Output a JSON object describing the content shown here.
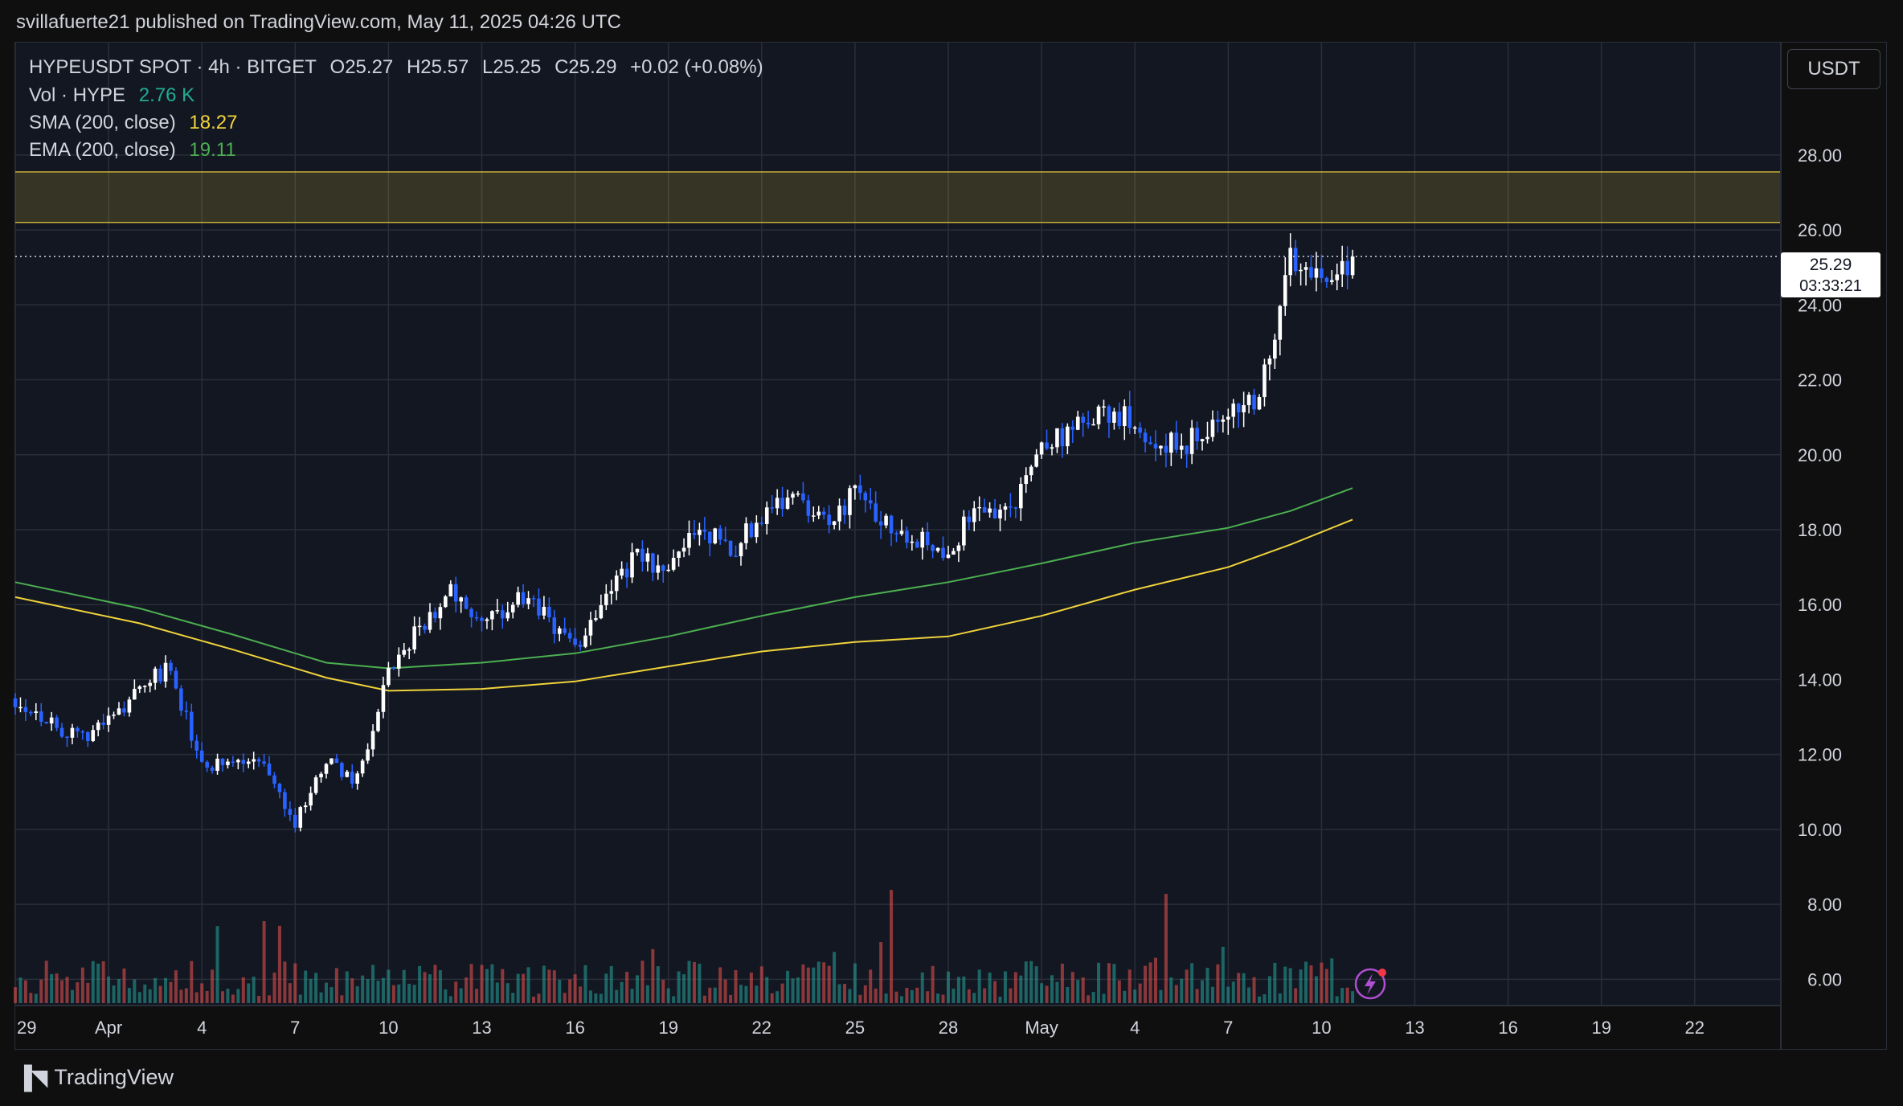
{
  "header": {
    "publisher": "svillafuerte21 published on TradingView.com, May 11, 2025 04:26 UTC"
  },
  "legend": {
    "symbol": "HYPEUSDT SPOT · 4h · BITGET",
    "open": "O25.27",
    "high": "H25.57",
    "low": "L25.25",
    "close": "C25.29",
    "change": "+0.02 (+0.08%)",
    "vol_label": "Vol · HYPE",
    "vol_value": "2.76 K",
    "sma_label": "SMA (200, close)",
    "sma_value": "18.27",
    "ema_label": "EMA (200, close)",
    "ema_value": "19.11"
  },
  "toolbar": {
    "currency": "USDT"
  },
  "price_tag": {
    "price": "25.29",
    "countdown": "03:33:21"
  },
  "footer": {
    "brand": "TradingView"
  },
  "colors": {
    "background": "#131722",
    "up": "#ffffff",
    "down": "#2962ff",
    "sma": "#f0d33b",
    "ema": "#4caf50",
    "vol_up": "#26a69a",
    "vol_down": "#ef5350",
    "zone": "#f0d33b"
  },
  "chart_data": {
    "type": "candlestick",
    "ylim": [
      5.3,
      31.0
    ],
    "y_ticks": [
      "6.00",
      "8.00",
      "10.00",
      "12.00",
      "14.00",
      "16.00",
      "18.00",
      "20.00",
      "22.00",
      "24.00",
      "26.00",
      "28.00"
    ],
    "x_ticks": [
      "29",
      "Apr",
      "4",
      "7",
      "10",
      "13",
      "16",
      "19",
      "22",
      "25",
      "28",
      "May",
      "4",
      "7",
      "10",
      "13",
      "16",
      "19",
      "22"
    ],
    "resistance_zone": [
      26.2,
      27.55
    ],
    "current_price": 25.29,
    "close_path": [
      {
        "date": "2025-03-29",
        "close": 13.5
      },
      {
        "date": "2025-03-31",
        "close": 12.4
      },
      {
        "date": "2025-04-01",
        "close": 12.9
      },
      {
        "date": "2025-04-02",
        "close": 13.8
      },
      {
        "date": "2025-04-03",
        "close": 14.3
      },
      {
        "date": "2025-04-04",
        "close": 11.6
      },
      {
        "date": "2025-04-05",
        "close": 11.8
      },
      {
        "date": "2025-04-06",
        "close": 11.7
      },
      {
        "date": "2025-04-07",
        "close": 10.2
      },
      {
        "date": "2025-04-08",
        "close": 11.8
      },
      {
        "date": "2025-04-09",
        "close": 11.3
      },
      {
        "date": "2025-04-10",
        "close": 14.1
      },
      {
        "date": "2025-04-11",
        "close": 15.4
      },
      {
        "date": "2025-04-12",
        "close": 16.4
      },
      {
        "date": "2025-04-13",
        "close": 15.3
      },
      {
        "date": "2025-04-14",
        "close": 16.1
      },
      {
        "date": "2025-04-15",
        "close": 15.8
      },
      {
        "date": "2025-04-16",
        "close": 14.8
      },
      {
        "date": "2025-04-17",
        "close": 16.4
      },
      {
        "date": "2025-04-18",
        "close": 17.3
      },
      {
        "date": "2025-04-19",
        "close": 16.8
      },
      {
        "date": "2025-04-20",
        "close": 18.2
      },
      {
        "date": "2025-04-21",
        "close": 17.4
      },
      {
        "date": "2025-04-22",
        "close": 18.4
      },
      {
        "date": "2025-04-23",
        "close": 19.1
      },
      {
        "date": "2025-04-24",
        "close": 18.2
      },
      {
        "date": "2025-04-25",
        "close": 18.9
      },
      {
        "date": "2025-04-26",
        "close": 18.3
      },
      {
        "date": "2025-04-27",
        "close": 17.8
      },
      {
        "date": "2025-04-28",
        "close": 17.5
      },
      {
        "date": "2025-04-29",
        "close": 18.6
      },
      {
        "date": "2025-04-30",
        "close": 18.5
      },
      {
        "date": "2025-05-01",
        "close": 20.3
      },
      {
        "date": "2025-05-02",
        "close": 20.6
      },
      {
        "date": "2025-05-03",
        "close": 21.1
      },
      {
        "date": "2025-05-04",
        "close": 20.9
      },
      {
        "date": "2025-05-05",
        "close": 20.2
      },
      {
        "date": "2025-05-06",
        "close": 20.4
      },
      {
        "date": "2025-05-07",
        "close": 21.0
      },
      {
        "date": "2025-05-08",
        "close": 21.6
      },
      {
        "date": "2025-05-09",
        "close": 25.2
      },
      {
        "date": "2025-05-10",
        "close": 24.8
      },
      {
        "date": "2025-05-11",
        "close": 25.29
      }
    ],
    "sma": [
      {
        "date": "2025-03-29",
        "value": 16.2
      },
      {
        "date": "2025-04-02",
        "value": 15.5
      },
      {
        "date": "2025-04-05",
        "value": 14.8
      },
      {
        "date": "2025-04-08",
        "value": 14.05
      },
      {
        "date": "2025-04-10",
        "value": 13.7
      },
      {
        "date": "2025-04-13",
        "value": 13.75
      },
      {
        "date": "2025-04-16",
        "value": 13.95
      },
      {
        "date": "2025-04-19",
        "value": 14.35
      },
      {
        "date": "2025-04-22",
        "value": 14.75
      },
      {
        "date": "2025-04-25",
        "value": 15.0
      },
      {
        "date": "2025-04-28",
        "value": 15.15
      },
      {
        "date": "2025-05-01",
        "value": 15.7
      },
      {
        "date": "2025-05-04",
        "value": 16.4
      },
      {
        "date": "2025-05-07",
        "value": 17.0
      },
      {
        "date": "2025-05-09",
        "value": 17.6
      },
      {
        "date": "2025-05-11",
        "value": 18.27
      }
    ],
    "ema": [
      {
        "date": "2025-03-29",
        "value": 16.6
      },
      {
        "date": "2025-04-02",
        "value": 15.9
      },
      {
        "date": "2025-04-05",
        "value": 15.2
      },
      {
        "date": "2025-04-08",
        "value": 14.45
      },
      {
        "date": "2025-04-10",
        "value": 14.3
      },
      {
        "date": "2025-04-13",
        "value": 14.45
      },
      {
        "date": "2025-04-16",
        "value": 14.7
      },
      {
        "date": "2025-04-19",
        "value": 15.15
      },
      {
        "date": "2025-04-22",
        "value": 15.7
      },
      {
        "date": "2025-04-25",
        "value": 16.2
      },
      {
        "date": "2025-04-28",
        "value": 16.6
      },
      {
        "date": "2025-05-01",
        "value": 17.1
      },
      {
        "date": "2025-05-04",
        "value": 17.65
      },
      {
        "date": "2025-05-07",
        "value": 18.05
      },
      {
        "date": "2025-05-09",
        "value": 18.5
      },
      {
        "date": "2025-05-11",
        "value": 19.11
      }
    ]
  }
}
